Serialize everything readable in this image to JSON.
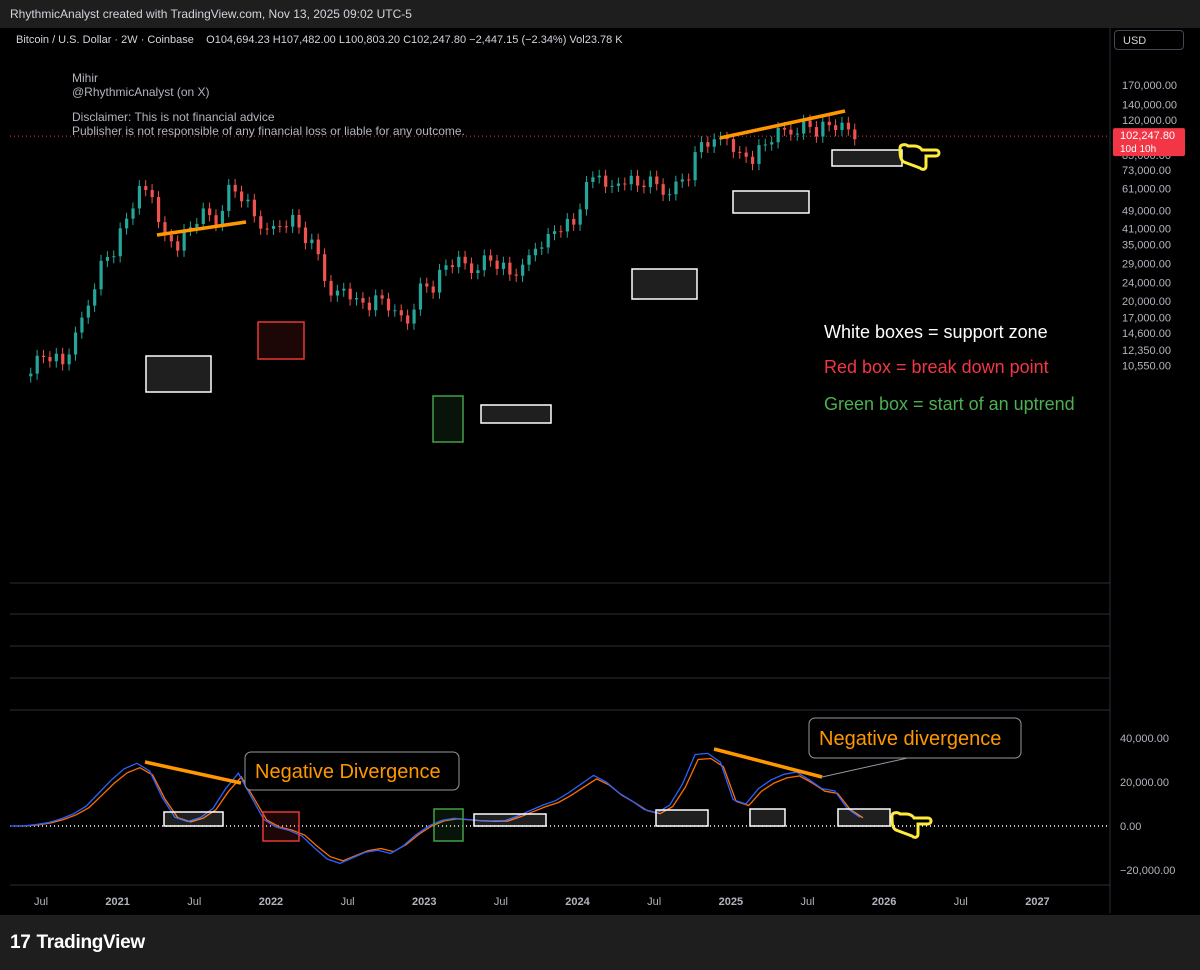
{
  "header": {
    "attribution": "RhythmicAnalyst created with TradingView.com, Nov 13, 2025 09:02 UTC-5",
    "symbol": "Bitcoin / U.S. Dollar · 2W · Coinbase",
    "ohlc": "O104,694.23  H107,482.00  L100,803.20  C102,247.80  −2,447.15 (−2.34%)  Vol23.78 K",
    "currency_button": "USD"
  },
  "notes": {
    "author_name": "Mihir",
    "author_handle": "@RhythmicAnalyst (on X)",
    "disclaimer_1": "Disclaimer: This is not financial advice",
    "disclaimer_2": "Publisher is not responsible of any financial loss or liable for any outcome.",
    "white_box": "White boxes = support zone",
    "red_box": "Red box = break down point",
    "green_box": "Green box = start of an uptrend",
    "neg_div_1": "Negative Divergence",
    "neg_div_2": "Negative divergence"
  },
  "colors": {
    "up_candle": "#26a69a",
    "down_candle": "#ef5350",
    "trendline": "#ff9800",
    "white_box": "#ffffff",
    "red_box": "#e53935",
    "green_box": "#43a047",
    "indicator_blue": "#2962ff",
    "indicator_orange": "#ff6d00",
    "price_label": "#f23645",
    "hand_icon": "#ffeb3b"
  },
  "chart_data": [
    {
      "type": "candlestick",
      "title": "Bitcoin / U.S. Dollar · 2W · Coinbase",
      "y_scale": "log",
      "price_axis_labels": [
        "170,000.00",
        "140,000.00",
        "120,000.00",
        "85,000.00",
        "73,000.00",
        "61,000.00",
        "49,000.00",
        "41,000.00",
        "35,000.00",
        "29,000.00",
        "24,000.00",
        "20,000.00",
        "17,000.00",
        "14,600.00",
        "12,350.00",
        "10,550.00"
      ],
      "current_price": "102,247.80",
      "countdown": "10d 10h",
      "time_axis_labels": [
        "Jul",
        "2021",
        "Jul",
        "2022",
        "Jul",
        "2023",
        "Jul",
        "2024",
        "Jul",
        "2025",
        "Jul",
        "2026",
        "Jul",
        "2027"
      ],
      "close_series": [
        {
          "date": "2020-06",
          "close": 9500
        },
        {
          "date": "2020-07",
          "close": 11300
        },
        {
          "date": "2020-08",
          "close": 11700
        },
        {
          "date": "2020-09",
          "close": 10700
        },
        {
          "date": "2020-10",
          "close": 13800
        },
        {
          "date": "2020-11",
          "close": 19700
        },
        {
          "date": "2020-12",
          "close": 28900
        },
        {
          "date": "2021-01",
          "close": 33100
        },
        {
          "date": "2021-02",
          "close": 45200
        },
        {
          "date": "2021-03",
          "close": 58800
        },
        {
          "date": "2021-04",
          "close": 57700
        },
        {
          "date": "2021-05",
          "close": 37300
        },
        {
          "date": "2021-06",
          "close": 35000
        },
        {
          "date": "2021-07",
          "close": 41500
        },
        {
          "date": "2021-08",
          "close": 47100
        },
        {
          "date": "2021-09",
          "close": 43800
        },
        {
          "date": "2021-10",
          "close": 61300
        },
        {
          "date": "2021-11",
          "close": 57000
        },
        {
          "date": "2021-12",
          "close": 46300
        },
        {
          "date": "2022-01",
          "close": 38500
        },
        {
          "date": "2022-02",
          "close": 43200
        },
        {
          "date": "2022-03",
          "close": 45500
        },
        {
          "date": "2022-04",
          "close": 37700
        },
        {
          "date": "2022-05",
          "close": 31800
        },
        {
          "date": "2022-06",
          "close": 19900
        },
        {
          "date": "2022-07",
          "close": 23300
        },
        {
          "date": "2022-08",
          "close": 20000
        },
        {
          "date": "2022-09",
          "close": 19400
        },
        {
          "date": "2022-10",
          "close": 20500
        },
        {
          "date": "2022-11",
          "close": 17200
        },
        {
          "date": "2022-12",
          "close": 16500
        },
        {
          "date": "2023-01",
          "close": 23100
        },
        {
          "date": "2023-02",
          "close": 23100
        },
        {
          "date": "2023-03",
          "close": 28500
        },
        {
          "date": "2023-04",
          "close": 29200
        },
        {
          "date": "2023-05",
          "close": 27200
        },
        {
          "date": "2023-06",
          "close": 30500
        },
        {
          "date": "2023-07",
          "close": 29200
        },
        {
          "date": "2023-08",
          "close": 26000
        },
        {
          "date": "2023-09",
          "close": 27000
        },
        {
          "date": "2023-10",
          "close": 34600
        },
        {
          "date": "2023-11",
          "close": 37700
        },
        {
          "date": "2023-12",
          "close": 42300
        },
        {
          "date": "2024-01",
          "close": 42600
        },
        {
          "date": "2024-02",
          "close": 61200
        },
        {
          "date": "2024-03",
          "close": 71300
        },
        {
          "date": "2024-04",
          "close": 60700
        },
        {
          "date": "2024-05",
          "close": 67500
        },
        {
          "date": "2024-06",
          "close": 62700
        },
        {
          "date": "2024-07",
          "close": 64600
        },
        {
          "date": "2024-08",
          "close": 59000
        },
        {
          "date": "2024-09",
          "close": 63300
        },
        {
          "date": "2024-10",
          "close": 70200
        },
        {
          "date": "2024-11",
          "close": 96400
        },
        {
          "date": "2024-12",
          "close": 93400
        },
        {
          "date": "2025-01",
          "close": 102400
        },
        {
          "date": "2025-02",
          "close": 84400
        },
        {
          "date": "2025-03",
          "close": 82500
        },
        {
          "date": "2025-04",
          "close": 94200
        },
        {
          "date": "2025-05",
          "close": 104600
        },
        {
          "date": "2025-06",
          "close": 107100
        },
        {
          "date": "2025-07",
          "close": 115800
        },
        {
          "date": "2025-08",
          "close": 108200
        },
        {
          "date": "2025-09",
          "close": 114000
        },
        {
          "date": "2025-10",
          "close": 110000
        },
        {
          "date": "2025-11",
          "close": 102248
        }
      ]
    },
    {
      "type": "line",
      "title": "",
      "y_axis_labels": [
        "40,000.00",
        "20,000.00",
        "0.00",
        "−20,000.00"
      ],
      "series": [
        {
          "values": [
            0,
            0,
            600,
            1500,
            3200,
            5500,
            9000,
            15000,
            21000,
            26000,
            28500,
            25000,
            13000,
            4000,
            2000,
            3800,
            8000,
            17000,
            24000,
            13500,
            3000,
            -500,
            -2000,
            -4500,
            -10000,
            -15000,
            -17000,
            -14500,
            -12000,
            -11000,
            -12500,
            -9000,
            -4000,
            0,
            2500,
            3500,
            3000,
            2500,
            2300,
            2400,
            4500,
            7000,
            9500,
            11500,
            15000,
            19000,
            23000,
            20000,
            15000,
            11500,
            7500,
            6000,
            9500,
            19000,
            32500,
            33000,
            29000,
            12000,
            10000,
            17000,
            21000,
            23500,
            24500,
            21000,
            17000,
            16000,
            8000,
            4000
          ]
        }
      ]
    }
  ]
}
